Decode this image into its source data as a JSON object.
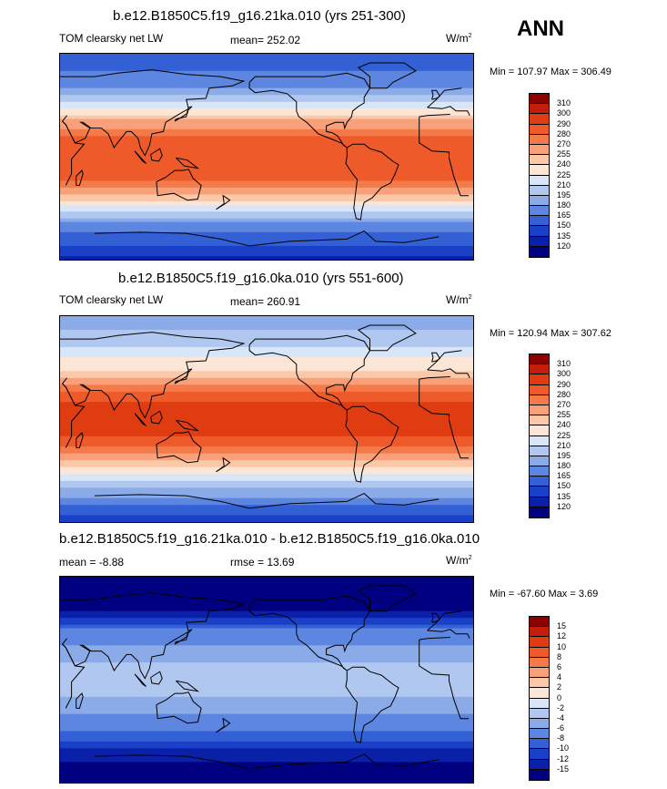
{
  "season_label": "ANN",
  "panels": [
    {
      "title": "b.e12.B1850C5.f19_g16.21ka.010 (yrs 251-300)",
      "left_label": "TOM clearsky net LW",
      "center_label": "mean= 252.02",
      "units": "W/m",
      "units_sup": "2",
      "minmax": "Min = 107.97 Max = 306.49"
    },
    {
      "title": "b.e12.B1850C5.f19_g16.0ka.010 (yrs 551-600)",
      "left_label": "TOM clearsky net LW",
      "center_label": "mean= 260.91",
      "units": "W/m",
      "units_sup": "2",
      "minmax": "Min = 120.94 Max = 307.62"
    },
    {
      "title": "b.e12.B1850C5.f19_g16.21ka.010 - b.e12.B1850C5.f19_g16.0ka.010",
      "left_label": "mean =  -8.88",
      "center_label": "rmse =  13.69",
      "units": "W/m",
      "units_sup": "2",
      "minmax": "Min = -67.60 Max =   3.69"
    }
  ],
  "chart_data": [
    {
      "type": "heatmap",
      "title": "b.e12.B1850C5.f19_g16.21ka.010 (yrs 251-300)",
      "variable": "TOM clearsky net LW",
      "mean": 252.02,
      "min": 107.97,
      "max": 306.49,
      "units": "W/m2",
      "colorbar_levels": [
        "310",
        "300",
        "290",
        "280",
        "270",
        "255",
        "240",
        "225",
        "210",
        "195",
        "180",
        "165",
        "150",
        "135",
        "120"
      ],
      "colorbar_colors": [
        "#8b0000",
        "#c41e0a",
        "#e03c12",
        "#ee5a2a",
        "#f47a4a",
        "#f8a07a",
        "#fbc8a8",
        "#fde6d6",
        "#d8e6f8",
        "#b0c8f0",
        "#8aaae8",
        "#5c86e0",
        "#3460d6",
        "#1a40c8",
        "#0a20a8",
        "#000080"
      ],
      "latitude_profile": [
        {
          "lat": 90,
          "value": 150
        },
        {
          "lat": 60,
          "value": 180
        },
        {
          "lat": 45,
          "value": 215
        },
        {
          "lat": 30,
          "value": 260
        },
        {
          "lat": 15,
          "value": 285
        },
        {
          "lat": 0,
          "value": 285
        },
        {
          "lat": -15,
          "value": 288
        },
        {
          "lat": -30,
          "value": 265
        },
        {
          "lat": -45,
          "value": 220
        },
        {
          "lat": -60,
          "value": 175
        },
        {
          "lat": -90,
          "value": 130
        }
      ]
    },
    {
      "type": "heatmap",
      "title": "b.e12.B1850C5.f19_g16.0ka.010 (yrs 551-600)",
      "variable": "TOM clearsky net LW",
      "mean": 260.91,
      "min": 120.94,
      "max": 307.62,
      "units": "W/m2",
      "colorbar_levels": [
        "310",
        "300",
        "290",
        "280",
        "270",
        "255",
        "240",
        "225",
        "210",
        "195",
        "180",
        "165",
        "150",
        "135",
        "120"
      ],
      "colorbar_colors": [
        "#8b0000",
        "#c41e0a",
        "#e03c12",
        "#ee5a2a",
        "#f47a4a",
        "#f8a07a",
        "#fbc8a8",
        "#fde6d6",
        "#d8e6f8",
        "#b0c8f0",
        "#8aaae8",
        "#5c86e0",
        "#3460d6",
        "#1a40c8",
        "#0a20a8",
        "#000080"
      ],
      "latitude_profile": [
        {
          "lat": 90,
          "value": 180
        },
        {
          "lat": 60,
          "value": 215
        },
        {
          "lat": 45,
          "value": 235
        },
        {
          "lat": 30,
          "value": 270
        },
        {
          "lat": 15,
          "value": 290
        },
        {
          "lat": 0,
          "value": 290
        },
        {
          "lat": -15,
          "value": 290
        },
        {
          "lat": -30,
          "value": 270
        },
        {
          "lat": -45,
          "value": 235
        },
        {
          "lat": -60,
          "value": 195
        },
        {
          "lat": -90,
          "value": 140
        }
      ]
    },
    {
      "type": "heatmap",
      "title": "b.e12.B1850C5.f19_g16.21ka.010 - b.e12.B1850C5.f19_g16.0ka.010",
      "mean": -8.88,
      "rmse": 13.69,
      "min": -67.6,
      "max": 3.69,
      "units": "W/m2",
      "colorbar_levels": [
        "15",
        "12",
        "10",
        "8",
        "6",
        "4",
        "2",
        "0",
        "-2",
        "-4",
        "-6",
        "-8",
        "-10",
        "-12",
        "-15"
      ],
      "colorbar_colors": [
        "#8b0000",
        "#c41e0a",
        "#e03c12",
        "#ee5a2a",
        "#f47a4a",
        "#f8a07a",
        "#fbc8a8",
        "#fde6d6",
        "#d8e6f8",
        "#b0c8f0",
        "#8aaae8",
        "#5c86e0",
        "#3460d6",
        "#1a40c8",
        "#0a20a8",
        "#000080"
      ],
      "latitude_profile": [
        {
          "lat": 90,
          "value": -20
        },
        {
          "lat": 60,
          "value": -15
        },
        {
          "lat": 45,
          "value": -8
        },
        {
          "lat": 30,
          "value": -6
        },
        {
          "lat": 15,
          "value": -4
        },
        {
          "lat": 0,
          "value": -3
        },
        {
          "lat": -15,
          "value": -4
        },
        {
          "lat": -30,
          "value": -6
        },
        {
          "lat": -45,
          "value": -8
        },
        {
          "lat": -60,
          "value": -12
        },
        {
          "lat": -90,
          "value": -20
        }
      ]
    }
  ]
}
